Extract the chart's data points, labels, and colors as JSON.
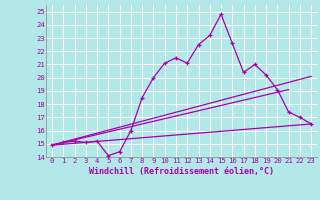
{
  "xlabel": "Windchill (Refroidissement éolien,°C)",
  "bg_color": "#b2e8e8",
  "grid_color": "#ffffff",
  "line_color": "#aa00aa",
  "xlim": [
    -0.5,
    23.5
  ],
  "ylim": [
    14,
    25.5
  ],
  "xticks": [
    0,
    1,
    2,
    3,
    4,
    5,
    6,
    7,
    8,
    9,
    10,
    11,
    12,
    13,
    14,
    15,
    16,
    17,
    18,
    19,
    20,
    21,
    22,
    23
  ],
  "yticks": [
    14,
    15,
    16,
    17,
    18,
    19,
    20,
    21,
    22,
    23,
    24,
    25
  ],
  "series0_x": [
    0,
    1,
    2,
    3,
    4,
    5,
    6,
    7,
    8,
    9,
    10,
    11,
    12,
    13,
    14,
    15,
    16,
    17,
    18,
    19,
    20,
    21,
    22,
    23
  ],
  "series0_y": [
    14.9,
    15.1,
    15.2,
    15.1,
    15.2,
    14.1,
    14.4,
    16.0,
    18.5,
    20.0,
    21.1,
    21.5,
    21.1,
    22.5,
    23.2,
    24.8,
    22.6,
    20.4,
    21.0,
    20.2,
    19.1,
    17.4,
    17.0,
    16.5
  ],
  "series1_x": [
    0,
    21
  ],
  "series1_y": [
    14.9,
    19.1
  ],
  "series2_x": [
    0,
    23
  ],
  "series2_y": [
    14.9,
    20.1
  ],
  "series3_x": [
    0,
    23
  ],
  "series3_y": [
    14.9,
    16.5
  ]
}
